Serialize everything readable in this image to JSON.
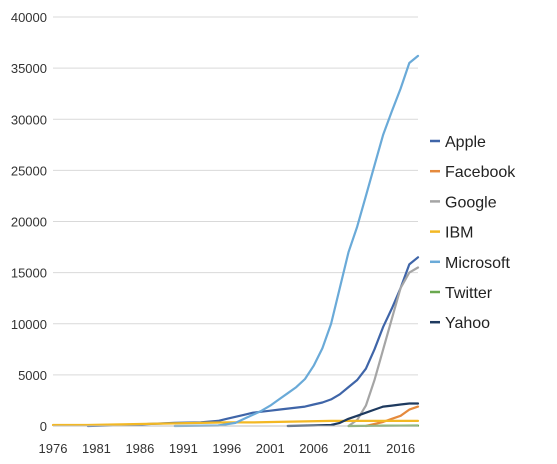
{
  "chart_data": {
    "type": "line",
    "title": "",
    "xlabel": "",
    "ylabel": "",
    "xlim": [
      1976,
      2018
    ],
    "ylim": [
      0,
      40000
    ],
    "x_ticks": [
      "1976",
      "1981",
      "1986",
      "1991",
      "1996",
      "2001",
      "2006",
      "2011",
      "2016"
    ],
    "y_ticks": [
      "0",
      "5000",
      "10000",
      "15000",
      "20000",
      "25000",
      "30000",
      "35000",
      "40000"
    ],
    "grid": "horizontal",
    "legend_position": "right",
    "series": [
      {
        "name": "Apple",
        "color": "#3f65a8",
        "points": [
          [
            1980,
            0
          ],
          [
            1985,
            100
          ],
          [
            1987,
            200
          ],
          [
            1990,
            300
          ],
          [
            1993,
            350
          ],
          [
            1995,
            500
          ],
          [
            1996,
            700
          ],
          [
            1997,
            900
          ],
          [
            1998,
            1100
          ],
          [
            1999,
            1300
          ],
          [
            2000,
            1400
          ],
          [
            2001,
            1500
          ],
          [
            2002,
            1600
          ],
          [
            2003,
            1700
          ],
          [
            2004,
            1800
          ],
          [
            2005,
            1900
          ],
          [
            2006,
            2100
          ],
          [
            2007,
            2300
          ],
          [
            2008,
            2600
          ],
          [
            2009,
            3100
          ],
          [
            2010,
            3800
          ],
          [
            2011,
            4500
          ],
          [
            2012,
            5600
          ],
          [
            2013,
            7500
          ],
          [
            2014,
            9700
          ],
          [
            2015,
            11500
          ],
          [
            2016,
            13500
          ],
          [
            2017,
            15800
          ],
          [
            2018,
            16500
          ]
        ]
      },
      {
        "name": "Facebook",
        "color": "#e58a3d",
        "points": [
          [
            2012,
            0
          ],
          [
            2013,
            200
          ],
          [
            2014,
            400
          ],
          [
            2015,
            700
          ],
          [
            2016,
            1000
          ],
          [
            2017,
            1600
          ],
          [
            2018,
            1900
          ]
        ]
      },
      {
        "name": "Google",
        "color": "#a5a5a5",
        "points": [
          [
            2010,
            0
          ],
          [
            2011,
            600
          ],
          [
            2012,
            2000
          ],
          [
            2013,
            4500
          ],
          [
            2014,
            7500
          ],
          [
            2015,
            10500
          ],
          [
            2016,
            13500
          ],
          [
            2017,
            15000
          ],
          [
            2018,
            15500
          ]
        ]
      },
      {
        "name": "IBM",
        "color": "#f3b824",
        "points": [
          [
            1976,
            100
          ],
          [
            1980,
            100
          ],
          [
            1983,
            150
          ],
          [
            1986,
            200
          ],
          [
            1990,
            250
          ],
          [
            1993,
            300
          ],
          [
            1996,
            350
          ],
          [
            1999,
            350
          ],
          [
            2002,
            400
          ],
          [
            2005,
            450
          ],
          [
            2008,
            500
          ],
          [
            2011,
            500
          ],
          [
            2014,
            500
          ],
          [
            2018,
            500
          ]
        ]
      },
      {
        "name": "Microsoft",
        "color": "#6aaad8",
        "points": [
          [
            1990,
            0
          ],
          [
            1995,
            50
          ],
          [
            1997,
            300
          ],
          [
            1998,
            700
          ],
          [
            1999,
            1100
          ],
          [
            2000,
            1500
          ],
          [
            2001,
            2000
          ],
          [
            2002,
            2600
          ],
          [
            2003,
            3200
          ],
          [
            2004,
            3800
          ],
          [
            2005,
            4600
          ],
          [
            2006,
            5900
          ],
          [
            2007,
            7600
          ],
          [
            2008,
            10000
          ],
          [
            2009,
            13500
          ],
          [
            2010,
            17000
          ],
          [
            2011,
            19500
          ],
          [
            2012,
            22500
          ],
          [
            2013,
            25500
          ],
          [
            2014,
            28500
          ],
          [
            2015,
            30800
          ],
          [
            2016,
            33000
          ],
          [
            2017,
            35500
          ],
          [
            2018,
            36200
          ]
        ]
      },
      {
        "name": "Twitter",
        "color": "#6aa84f",
        "points": [
          [
            2010,
            0
          ],
          [
            2013,
            20
          ],
          [
            2016,
            30
          ],
          [
            2018,
            40
          ]
        ]
      },
      {
        "name": "Yahoo",
        "color": "#1e3a5f",
        "points": [
          [
            2003,
            0
          ],
          [
            2006,
            50
          ],
          [
            2008,
            100
          ],
          [
            2009,
            300
          ],
          [
            2010,
            700
          ],
          [
            2011,
            1000
          ],
          [
            2012,
            1300
          ],
          [
            2013,
            1600
          ],
          [
            2014,
            1900
          ],
          [
            2015,
            2000
          ],
          [
            2016,
            2100
          ],
          [
            2017,
            2200
          ],
          [
            2018,
            2200
          ]
        ]
      }
    ]
  }
}
